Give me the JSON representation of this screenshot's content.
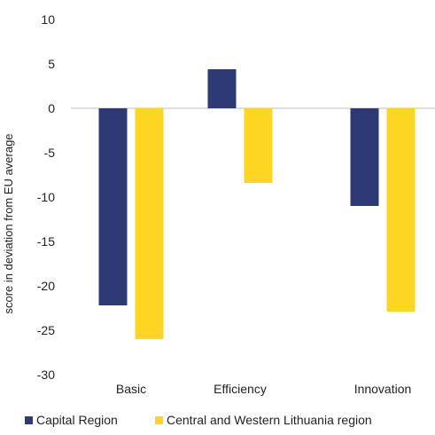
{
  "chart_data": {
    "type": "bar",
    "ylabel": "score in deviation from EU  average",
    "xlabel": "",
    "title": "",
    "categories": [
      "Basic",
      "Efficiency",
      "Innovation"
    ],
    "series": [
      {
        "name": "Capital Region",
        "color": "#2e3a73",
        "values": [
          -22.2,
          4.4,
          -11.0
        ]
      },
      {
        "name": "Central and Western Lithuania region",
        "color": "#fcd623",
        "values": [
          -26.0,
          -8.4,
          -22.9
        ]
      }
    ],
    "ylim": [
      -30,
      10
    ],
    "yticks": [
      "10",
      "5",
      "0",
      "-5",
      "-10",
      "-15",
      "-20",
      "-25",
      "-30"
    ],
    "yticks_values": [
      10,
      5,
      0,
      -5,
      -10,
      -15,
      -20,
      -25,
      -30
    ],
    "grid": false,
    "legend_position": "bottom"
  }
}
